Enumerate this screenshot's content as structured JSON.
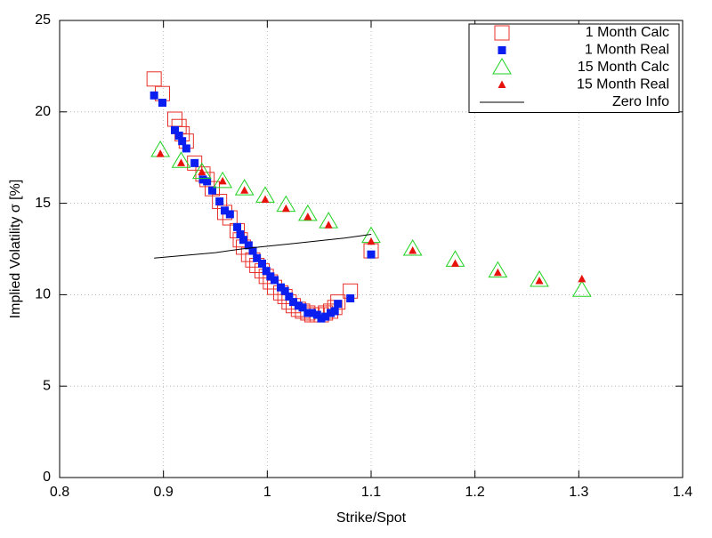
{
  "chart_data": {
    "type": "scatter",
    "xlabel": "Strike/Spot",
    "ylabel": "Implied Volatility σ [%]",
    "xlim": [
      0.8,
      1.4
    ],
    "ylim": [
      0,
      25
    ],
    "xticks": [
      0.8,
      0.9,
      1,
      1.1,
      1.2,
      1.3,
      1.4
    ],
    "yticks": [
      0,
      5,
      10,
      15,
      20,
      25
    ],
    "grid": true,
    "legend": "upper right",
    "series": [
      {
        "name": "1 Month Calc",
        "color": "#e8312a",
        "marker": "square-open",
        "x": [
          0.891,
          0.899,
          0.911,
          0.915,
          0.918,
          0.922,
          0.93,
          0.938,
          0.942,
          0.947,
          0.954,
          0.959,
          0.964,
          0.971,
          0.974,
          0.977,
          0.982,
          0.986,
          0.99,
          0.995,
          0.999,
          1.003,
          1.007,
          1.013,
          1.017,
          1.021,
          1.025,
          1.03,
          1.034,
          1.039,
          1.043,
          1.048,
          1.052,
          1.056,
          1.061,
          1.065,
          1.068,
          1.08,
          1.1
        ],
        "values": [
          21.8,
          21.0,
          19.6,
          19.2,
          18.8,
          18.4,
          17.2,
          16.6,
          16.3,
          15.8,
          15.1,
          14.5,
          14.2,
          13.5,
          13.0,
          12.6,
          12.2,
          11.9,
          11.6,
          11.3,
          11.0,
          10.7,
          10.4,
          10.1,
          9.9,
          9.6,
          9.4,
          9.2,
          9.1,
          9.0,
          8.9,
          8.9,
          8.9,
          9.0,
          9.1,
          9.3,
          9.6,
          10.2,
          12.4
        ]
      },
      {
        "name": "1 Month Real",
        "color": "#0a1ef0",
        "marker": "square-filled",
        "x": [
          0.891,
          0.899,
          0.911,
          0.915,
          0.918,
          0.922,
          0.93,
          0.938,
          0.942,
          0.947,
          0.954,
          0.959,
          0.964,
          0.971,
          0.974,
          0.977,
          0.982,
          0.986,
          0.99,
          0.995,
          0.999,
          1.003,
          1.007,
          1.013,
          1.017,
          1.021,
          1.025,
          1.03,
          1.034,
          1.039,
          1.043,
          1.048,
          1.052,
          1.056,
          1.061,
          1.065,
          1.068,
          1.08,
          1.1
        ],
        "values": [
          20.9,
          20.5,
          19.0,
          18.7,
          18.4,
          18.0,
          17.2,
          16.3,
          16.2,
          15.7,
          15.1,
          14.6,
          14.4,
          13.7,
          13.3,
          13.0,
          12.7,
          12.4,
          12.0,
          11.7,
          11.3,
          11.0,
          10.8,
          10.4,
          10.2,
          9.9,
          9.6,
          9.4,
          9.3,
          9.0,
          9.0,
          8.9,
          8.7,
          8.8,
          9.0,
          9.1,
          9.5,
          9.8,
          12.2
        ]
      },
      {
        "name": "15 Month Calc",
        "color": "#1fd21f",
        "marker": "triangle-open",
        "x": [
          0.897,
          0.917,
          0.937,
          0.957,
          0.978,
          0.998,
          1.018,
          1.039,
          1.059,
          1.1,
          1.14,
          1.181,
          1.222,
          1.262,
          1.303
        ],
        "values": [
          17.9,
          17.3,
          16.7,
          16.2,
          15.8,
          15.4,
          14.9,
          14.4,
          14.0,
          13.2,
          12.5,
          11.9,
          11.3,
          10.8,
          10.25
        ]
      },
      {
        "name": "15 Month Real",
        "color": "#e8120c",
        "marker": "triangle-filled",
        "x": [
          0.897,
          0.917,
          0.937,
          0.957,
          0.978,
          0.998,
          1.018,
          1.039,
          1.059,
          1.1,
          1.14,
          1.181,
          1.222,
          1.262,
          1.303
        ],
        "values": [
          17.7,
          17.2,
          16.7,
          16.2,
          15.7,
          15.2,
          14.7,
          14.25,
          13.8,
          12.9,
          12.4,
          11.7,
          11.2,
          10.75,
          10.85
        ]
      },
      {
        "name": "Zero Info",
        "color": "#000000",
        "marker": "line",
        "x": [
          0.891,
          0.92,
          0.95,
          0.975,
          1.0,
          1.025,
          1.05,
          1.075,
          1.1
        ],
        "values": [
          12.0,
          12.15,
          12.3,
          12.5,
          12.65,
          12.8,
          12.95,
          13.1,
          13.3
        ]
      }
    ]
  }
}
